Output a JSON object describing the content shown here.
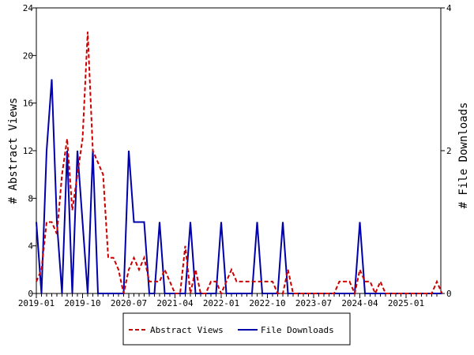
{
  "chart_data": {
    "type": "line",
    "xlabel": "",
    "ylabel_left": "# Abstract Views",
    "ylabel_right": "# File Downloads",
    "x_tick_labels": [
      "2019-01",
      "2019-10",
      "2020-07",
      "2021-04",
      "2022-01",
      "2022-10",
      "2023-07",
      "2024-04",
      "2025-01"
    ],
    "y_left_ticks": [
      "0",
      "4",
      "8",
      "12",
      "16",
      "20",
      "24"
    ],
    "y_right_ticks": [
      "0",
      "2",
      "4"
    ],
    "ylim_left": [
      0,
      24
    ],
    "ylim_right": [
      0,
      4
    ],
    "x_start": "2019-01",
    "legend_placement": "bottom",
    "grid": false,
    "series": [
      {
        "name": "Abstract Views",
        "axis": "left",
        "color": "#cc0000",
        "dash": "dashed",
        "points": [
          [
            "2019-01",
            1
          ],
          [
            "2019-02",
            2
          ],
          [
            "2019-03",
            6
          ],
          [
            "2019-04",
            6
          ],
          [
            "2019-05",
            5
          ],
          [
            "2019-06",
            10
          ],
          [
            "2019-07",
            13
          ],
          [
            "2019-08",
            7
          ],
          [
            "2019-09",
            10
          ],
          [
            "2019-10",
            13
          ],
          [
            "2019-11",
            22
          ],
          [
            "2019-12",
            12
          ],
          [
            "2020-01",
            11
          ],
          [
            "2020-02",
            10
          ],
          [
            "2020-03",
            3
          ],
          [
            "2020-04",
            3
          ],
          [
            "2020-05",
            2
          ],
          [
            "2020-06",
            0
          ],
          [
            "2020-07",
            2
          ],
          [
            "2020-08",
            3
          ],
          [
            "2020-09",
            2
          ],
          [
            "2020-10",
            3
          ],
          [
            "2020-11",
            1
          ],
          [
            "2020-12",
            1
          ],
          [
            "2021-01",
            1
          ],
          [
            "2021-02",
            2
          ],
          [
            "2021-03",
            1
          ],
          [
            "2021-04",
            0
          ],
          [
            "2021-05",
            0
          ],
          [
            "2021-06",
            4
          ],
          [
            "2021-07",
            0
          ],
          [
            "2021-08",
            2
          ],
          [
            "2021-09",
            0
          ],
          [
            "2021-10",
            0
          ],
          [
            "2021-11",
            1
          ],
          [
            "2021-12",
            1
          ],
          [
            "2022-01",
            0
          ],
          [
            "2022-02",
            1
          ],
          [
            "2022-03",
            2
          ],
          [
            "2022-04",
            1
          ],
          [
            "2022-05",
            1
          ],
          [
            "2022-06",
            1
          ],
          [
            "2022-07",
            1
          ],
          [
            "2022-08",
            1
          ],
          [
            "2022-09",
            1
          ],
          [
            "2022-10",
            1
          ],
          [
            "2022-11",
            1
          ],
          [
            "2022-12",
            0
          ],
          [
            "2023-01",
            0
          ],
          [
            "2023-02",
            2
          ],
          [
            "2023-03",
            0
          ],
          [
            "2023-04",
            0
          ],
          [
            "2023-05",
            0
          ],
          [
            "2023-06",
            0
          ],
          [
            "2023-07",
            0
          ],
          [
            "2023-08",
            0
          ],
          [
            "2023-09",
            0
          ],
          [
            "2023-10",
            0
          ],
          [
            "2023-11",
            0
          ],
          [
            "2023-12",
            1
          ],
          [
            "2024-01",
            1
          ],
          [
            "2024-02",
            1
          ],
          [
            "2024-03",
            0
          ],
          [
            "2024-04",
            2
          ],
          [
            "2024-05",
            1
          ],
          [
            "2024-06",
            1
          ],
          [
            "2024-07",
            0
          ],
          [
            "2024-08",
            1
          ],
          [
            "2024-09",
            0
          ],
          [
            "2024-10",
            0
          ],
          [
            "2024-11",
            0
          ],
          [
            "2024-12",
            0
          ],
          [
            "2025-01",
            0
          ],
          [
            "2025-02",
            0
          ],
          [
            "2025-03",
            0
          ],
          [
            "2025-04",
            0
          ],
          [
            "2025-05",
            0
          ],
          [
            "2025-06",
            0
          ],
          [
            "2025-07",
            1
          ],
          [
            "2025-08",
            0
          ]
        ]
      },
      {
        "name": "File Downloads",
        "axis": "right",
        "color": "#0000aa",
        "dash": "solid",
        "points": [
          [
            "2019-01",
            1
          ],
          [
            "2019-02",
            0
          ],
          [
            "2019-03",
            2
          ],
          [
            "2019-04",
            3
          ],
          [
            "2019-05",
            1
          ],
          [
            "2019-06",
            0
          ],
          [
            "2019-07",
            2
          ],
          [
            "2019-08",
            0
          ],
          [
            "2019-09",
            2
          ],
          [
            "2019-10",
            1
          ],
          [
            "2019-11",
            0
          ],
          [
            "2019-12",
            2
          ],
          [
            "2020-01",
            0
          ],
          [
            "2020-02",
            0
          ],
          [
            "2020-03",
            0
          ],
          [
            "2020-04",
            0
          ],
          [
            "2020-05",
            0
          ],
          [
            "2020-06",
            0
          ],
          [
            "2020-07",
            2
          ],
          [
            "2020-08",
            1
          ],
          [
            "2020-09",
            1
          ],
          [
            "2020-10",
            1
          ],
          [
            "2020-11",
            0
          ],
          [
            "2020-12",
            0
          ],
          [
            "2021-01",
            1
          ],
          [
            "2021-02",
            0
          ],
          [
            "2021-03",
            0
          ],
          [
            "2021-04",
            0
          ],
          [
            "2021-05",
            0
          ],
          [
            "2021-06",
            0
          ],
          [
            "2021-07",
            1
          ],
          [
            "2021-08",
            0
          ],
          [
            "2021-09",
            0
          ],
          [
            "2021-10",
            0
          ],
          [
            "2021-11",
            0
          ],
          [
            "2021-12",
            0
          ],
          [
            "2022-01",
            1
          ],
          [
            "2022-02",
            0
          ],
          [
            "2022-03",
            0
          ],
          [
            "2022-04",
            0
          ],
          [
            "2022-05",
            0
          ],
          [
            "2022-06",
            0
          ],
          [
            "2022-07",
            0
          ],
          [
            "2022-08",
            1
          ],
          [
            "2022-09",
            0
          ],
          [
            "2022-10",
            0
          ],
          [
            "2022-11",
            0
          ],
          [
            "2022-12",
            0
          ],
          [
            "2023-01",
            1
          ],
          [
            "2023-02",
            0
          ],
          [
            "2023-03",
            0
          ],
          [
            "2023-04",
            0
          ],
          [
            "2023-05",
            0
          ],
          [
            "2023-06",
            0
          ],
          [
            "2023-07",
            0
          ],
          [
            "2023-08",
            0
          ],
          [
            "2023-09",
            0
          ],
          [
            "2023-10",
            0
          ],
          [
            "2023-11",
            0
          ],
          [
            "2023-12",
            0
          ],
          [
            "2024-01",
            0
          ],
          [
            "2024-02",
            0
          ],
          [
            "2024-03",
            0
          ],
          [
            "2024-04",
            1
          ],
          [
            "2024-05",
            0
          ],
          [
            "2024-06",
            0
          ],
          [
            "2024-07",
            0
          ],
          [
            "2024-08",
            0
          ],
          [
            "2024-09",
            0
          ],
          [
            "2024-10",
            0
          ],
          [
            "2024-11",
            0
          ],
          [
            "2024-12",
            0
          ],
          [
            "2025-01",
            0
          ],
          [
            "2025-02",
            0
          ],
          [
            "2025-03",
            0
          ],
          [
            "2025-04",
            0
          ],
          [
            "2025-05",
            0
          ],
          [
            "2025-06",
            0
          ],
          [
            "2025-07",
            0
          ],
          [
            "2025-08",
            0
          ]
        ]
      }
    ]
  }
}
